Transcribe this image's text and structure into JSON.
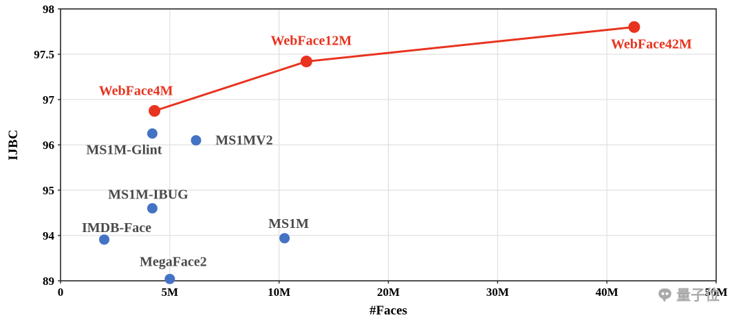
{
  "watermark": {
    "text": "量子位"
  },
  "chart_data": {
    "type": "scatter",
    "title": "",
    "xlabel": "#Faces",
    "ylabel": "IJBC",
    "grid": true,
    "x_axis": {
      "tick_values": [
        0,
        5,
        10,
        20,
        30,
        40,
        50
      ],
      "tick_labels": [
        "0",
        "5M",
        "10M",
        "20M",
        "30M",
        "40M",
        "50M"
      ],
      "scale": "non-linear, ticks evenly spaced, values in millions"
    },
    "y_axis": {
      "tick_values": [
        89,
        94,
        95,
        96,
        97,
        97.5,
        98
      ],
      "tick_labels": [
        "89",
        "94",
        "95",
        "96",
        "97",
        "97.5",
        "98"
      ],
      "scale": "non-linear, ticks evenly spaced"
    },
    "colors": {
      "highlight_red": "#e8331f",
      "point_blue": "#4472c4",
      "label_gray": "#4a4a4a",
      "gridline": "#d9d9d9"
    },
    "series": [
      {
        "name": "WebFace (highlighted, connected by red line)",
        "type": "line+scatter",
        "color": "#e8331f",
        "label_color": "#e8331f",
        "point_radius": 8.5,
        "line_width": 3,
        "points": [
          {
            "label": "WebFace4M",
            "x": 4.3,
            "y": 96.75,
            "label_dx": -27,
            "label_dy": -23
          },
          {
            "label": "WebFace12M",
            "x": 12.5,
            "y": 97.42,
            "label_dx": 7,
            "label_dy": -24
          },
          {
            "label": "WebFace42M",
            "x": 42.5,
            "y": 97.8,
            "label_dx": 25,
            "label_dy": 31
          }
        ]
      },
      {
        "name": "Existing datasets (blue points)",
        "type": "scatter",
        "color": "#4472c4",
        "label_color": "#4a4a4a",
        "point_radius": 7.5,
        "points": [
          {
            "label": "MS1M-Glint",
            "x": 4.2,
            "y": 96.25,
            "label_dx": -41,
            "label_dy": 30
          },
          {
            "label": "MS1MV2",
            "x": 6.2,
            "y": 96.1,
            "label_dx": 70,
            "label_dy": 6
          },
          {
            "label": "MS1M-IBUG",
            "x": 4.2,
            "y": 94.6,
            "label_dx": -6,
            "label_dy": -14
          },
          {
            "label": "IMDB-Face",
            "x": 2.0,
            "y": 93.55,
            "label_dx": 18,
            "label_dy": -11
          },
          {
            "label": "MegaFace2",
            "x": 5.0,
            "y": 89.2,
            "label_dx": 5,
            "label_dy": -19
          },
          {
            "label": "MS1M",
            "x": 10.5,
            "y": 93.7,
            "label_dx": 6,
            "label_dy": -15
          }
        ]
      }
    ]
  }
}
